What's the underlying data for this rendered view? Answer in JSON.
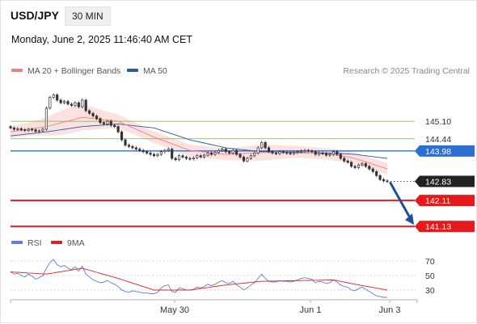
{
  "header": {
    "pair": "USD/JPY",
    "timeframe": "30 MIN",
    "datetime": "Monday, June 2, 2025 11:46:40 AM CET"
  },
  "legend": {
    "items": [
      {
        "label": "MA 20 + Bollinger Bands",
        "color": "#f08080"
      },
      {
        "label": "MA 50",
        "color": "#2a5aa8"
      }
    ],
    "credit": "Research © 2025 Trading Central"
  },
  "rsi_legend": {
    "items": [
      {
        "label": "RSI",
        "color": "#5b7fd6"
      },
      {
        "label": "9MA",
        "color": "#e02020"
      }
    ]
  },
  "colors": {
    "resistance": "#7ab33a",
    "pivot": "#2b6fd4",
    "support": "#e8191a",
    "last": "#222222",
    "arrow": "#1f4f9a",
    "band": "#fcdede",
    "candle": "#333333"
  },
  "chart_data": [
    {
      "type": "candlestick",
      "ylim": [
        140.8,
        146.6
      ],
      "x_ticks": [
        "May 30",
        "Jun 1",
        "Jun 3"
      ],
      "levels": [
        {
          "label": "145.10",
          "value": 145.1,
          "kind": "resistance"
        },
        {
          "label": "144.44",
          "value": 144.44,
          "kind": "resistance"
        },
        {
          "label": "143.98",
          "value": 143.98,
          "kind": "pivot"
        },
        {
          "label": "142.83",
          "value": 142.83,
          "kind": "last"
        },
        {
          "label": "142.11",
          "value": 142.11,
          "kind": "support"
        },
        {
          "label": "141.13",
          "value": 141.13,
          "kind": "support"
        }
      ],
      "close": [
        144.85,
        144.8,
        144.82,
        144.78,
        144.75,
        144.8,
        144.78,
        144.72,
        144.74,
        144.8,
        145.6,
        146.0,
        146.1,
        145.9,
        145.8,
        145.85,
        145.75,
        145.7,
        145.8,
        145.65,
        145.9,
        145.5,
        145.4,
        145.3,
        145.2,
        145.05,
        145.0,
        145.1,
        144.95,
        144.9,
        144.7,
        144.4,
        144.2,
        144.15,
        144.1,
        144.05,
        144.0,
        143.95,
        143.9,
        143.85,
        143.8,
        143.85,
        143.95,
        144.0,
        144.05,
        143.7,
        143.65,
        143.8,
        143.75,
        143.7,
        143.68,
        143.72,
        143.8,
        143.75,
        143.82,
        143.9,
        143.85,
        143.92,
        144.0,
        144.05,
        143.95,
        143.9,
        144.0,
        143.85,
        143.75,
        143.6,
        143.7,
        143.8,
        143.9,
        144.1,
        144.3,
        144.1,
        143.95,
        143.9,
        143.88,
        143.95,
        143.92,
        143.9,
        143.88,
        143.92,
        143.95,
        143.98,
        144.0,
        143.98,
        143.95,
        143.85,
        143.9,
        143.88,
        143.82,
        143.85,
        143.95,
        143.85,
        143.7,
        143.6,
        143.55,
        143.4,
        143.35,
        143.45,
        143.5,
        143.4,
        143.3,
        143.2,
        143.05,
        142.9,
        142.85,
        142.83
      ],
      "ma20_points": [
        [
          0,
          144.7
        ],
        [
          10,
          144.9
        ],
        [
          20,
          145.25
        ],
        [
          30,
          145.1
        ],
        [
          40,
          144.5
        ],
        [
          50,
          144.0
        ],
        [
          60,
          143.85
        ],
        [
          70,
          143.92
        ],
        [
          80,
          143.95
        ],
        [
          90,
          143.85
        ],
        [
          96,
          143.7
        ],
        [
          105,
          143.3
        ]
      ],
      "ma50_points": [
        [
          0,
          144.55
        ],
        [
          10,
          144.7
        ],
        [
          20,
          144.9
        ],
        [
          30,
          145.0
        ],
        [
          40,
          144.85
        ],
        [
          50,
          144.4
        ],
        [
          60,
          144.1
        ],
        [
          70,
          143.95
        ],
        [
          80,
          143.92
        ],
        [
          90,
          143.9
        ],
        [
          96,
          143.85
        ],
        [
          105,
          143.7
        ]
      ]
    },
    {
      "type": "line",
      "ylim": [
        20,
        80
      ],
      "y_ticks": [
        70,
        50,
        30
      ],
      "series": [
        {
          "name": "RSI",
          "values": [
            55,
            52,
            53,
            50,
            48,
            52,
            49,
            45,
            47,
            50,
            60,
            68,
            72,
            65,
            62,
            64,
            60,
            58,
            62,
            56,
            63,
            52,
            48,
            44,
            42,
            40,
            41,
            43,
            40,
            38,
            35,
            30,
            28,
            27,
            29,
            28,
            27,
            26,
            26,
            25,
            25,
            27,
            33,
            36,
            37,
            28,
            27,
            33,
            32,
            30,
            30,
            31,
            34,
            33,
            35,
            38,
            36,
            38,
            41,
            43,
            40,
            39,
            42,
            37,
            34,
            30,
            33,
            37,
            40,
            46,
            52,
            46,
            42,
            41,
            41,
            43,
            42,
            42,
            41,
            42,
            44,
            46,
            47,
            46,
            45,
            40,
            42,
            41,
            39,
            40,
            44,
            41,
            37,
            35,
            34,
            30,
            29,
            32,
            34,
            31,
            28,
            25,
            22,
            21,
            20,
            20
          ]
        },
        {
          "name": "9MA",
          "points": [
            [
              0,
              55
            ],
            [
              10,
              52
            ],
            [
              20,
              60
            ],
            [
              30,
              46
            ],
            [
              40,
              30
            ],
            [
              50,
              30
            ],
            [
              60,
              37
            ],
            [
              70,
              42
            ],
            [
              80,
              43
            ],
            [
              90,
              44
            ],
            [
              96,
              38
            ],
            [
              105,
              30
            ]
          ]
        }
      ]
    }
  ]
}
